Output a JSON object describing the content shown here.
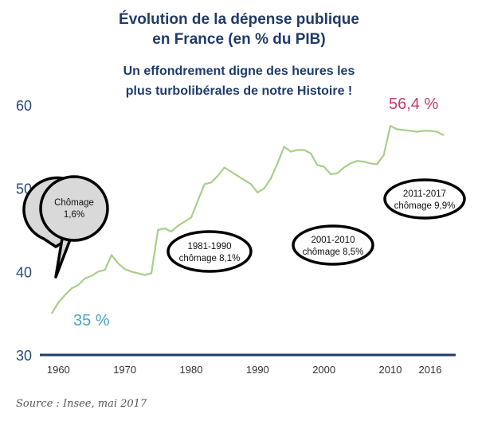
{
  "chart_data": {
    "type": "line",
    "title_line1": "Évolution de la dépense publique",
    "title_line2": "en France (en % du PIB)",
    "subtitle_line1": "Un effondrement digne des heures les",
    "subtitle_line2": "plus turbolibérales de notre Histoire !",
    "source": "Source : Insee, mai 2017",
    "xlabel": "",
    "ylabel": "",
    "xlim": [
      1959,
      2019
    ],
    "ylim": [
      30,
      60
    ],
    "x_ticks": [
      1960,
      1970,
      1980,
      1990,
      2000,
      2010,
      2016
    ],
    "y_ticks": [
      60,
      50,
      40,
      30
    ],
    "grid": false,
    "line_color": "#a8cf8a",
    "axis_color": "#1f3b6a",
    "series": [
      {
        "x": [
          1959,
          1960,
          1961,
          1962,
          1963,
          1964,
          1965,
          1966,
          1967,
          1968,
          1969,
          1970,
          1971,
          1972,
          1973,
          1974,
          1975,
          1976,
          1977,
          1978,
          1979,
          1980,
          1981,
          1982,
          1983,
          1984,
          1985,
          1986,
          1987,
          1988,
          1989,
          1990,
          1991,
          1992,
          1993,
          1994,
          1995,
          1996,
          1997,
          1998,
          1999,
          2000,
          2001,
          2002,
          2003,
          2004,
          2005,
          2006,
          2007,
          2008,
          2009,
          2010,
          2011,
          2012,
          2013,
          2014,
          2015,
          2016,
          2017,
          2018
        ],
        "values": [
          35,
          36.3,
          37.2,
          38,
          38.4,
          39.2,
          39.5,
          40,
          40.2,
          42,
          41,
          40.3,
          40,
          39.8,
          39.6,
          39.8,
          45,
          45.2,
          44.8,
          45.5,
          46,
          46.5,
          48.5,
          50.5,
          50.7,
          51.5,
          52.5,
          52,
          51.5,
          51,
          50.5,
          49.5,
          50,
          51.2,
          53,
          55,
          54.4,
          54.6,
          54.6,
          54.2,
          52.8,
          52.6,
          51.7,
          51.8,
          52.5,
          53,
          53.3,
          53.2,
          53,
          52.9,
          54,
          57.5,
          57.1,
          57,
          56.9,
          56.8,
          56.9,
          56.9,
          56.8,
          56.4
        ],
        "color": "#a8cf8a"
      }
    ],
    "annotations": {
      "start_value": "35 %",
      "end_value": "56,4 %",
      "start_color": "#4aa3c8",
      "end_color": "#c43c6a",
      "callouts": [
        {
          "line1": "Chômage",
          "line2": "1,6%"
        },
        {
          "line1": "1981-1990",
          "line2": "chômage 8,1%"
        },
        {
          "line1": "2001-2010",
          "line2": "chômage 8,5%"
        },
        {
          "line1": "2011-2017",
          "line2": "chômage 9,9%"
        }
      ]
    }
  }
}
